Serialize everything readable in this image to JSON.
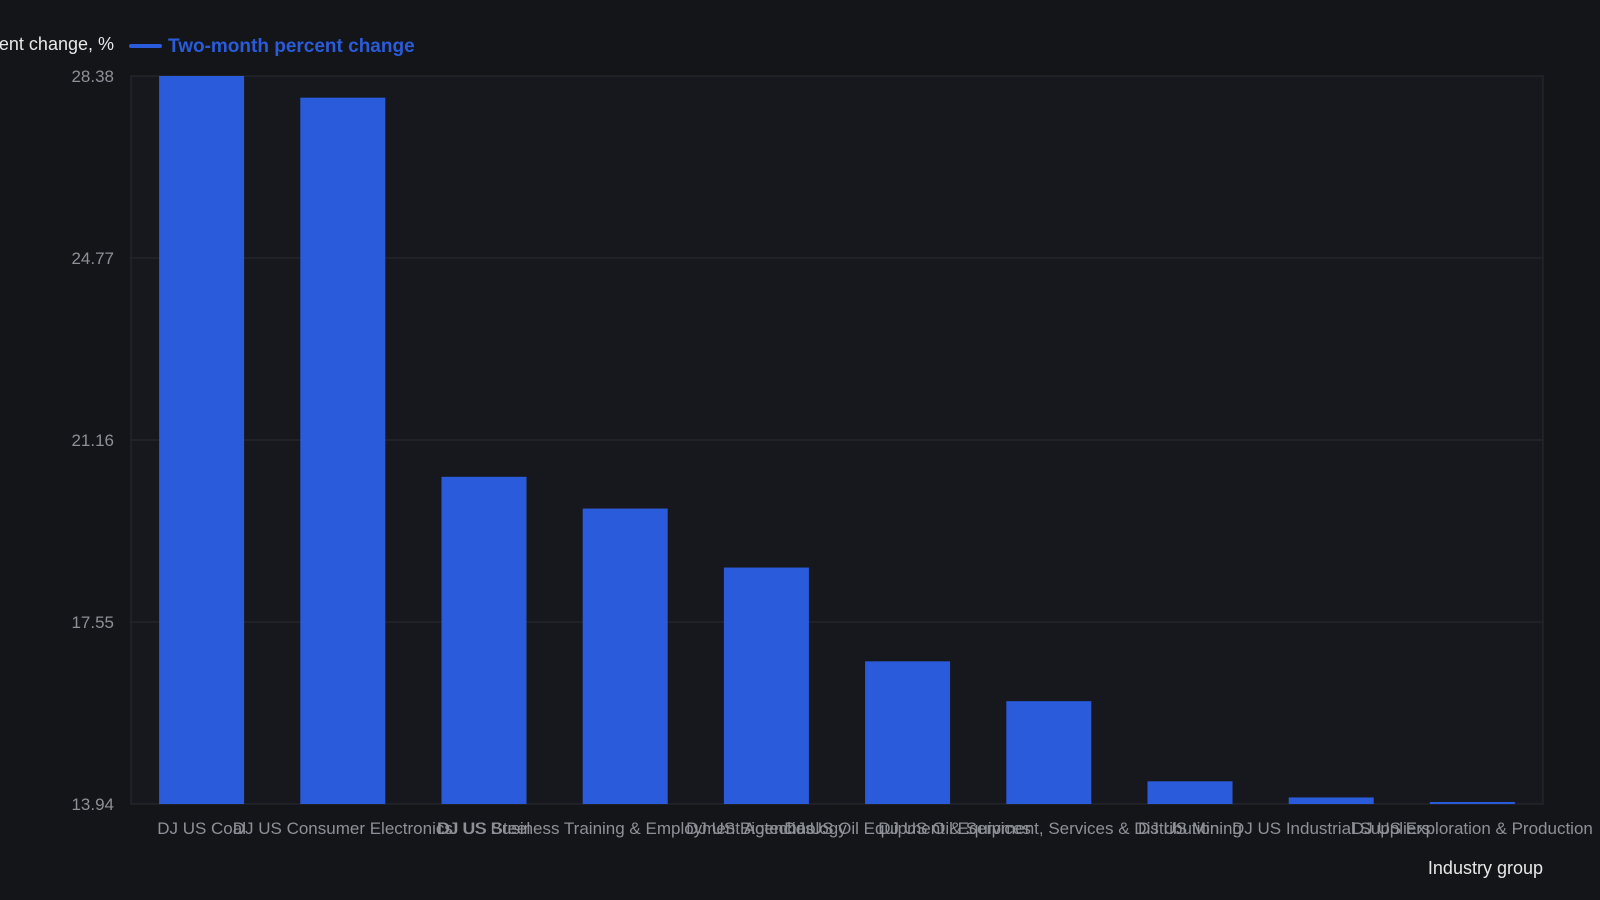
{
  "chart_data": {
    "type": "bar",
    "title": "",
    "ylabel": "ent change, %",
    "xlabel": "Industry group",
    "ylim": [
      13.94,
      28.38
    ],
    "yticks": [
      "28.38",
      "24.77",
      "21.16",
      "17.55",
      "13.94"
    ],
    "grid": true,
    "legend_position": "top-left",
    "categories": [
      "DJ US Coal",
      "DJ US Consumer Electronics",
      "DJ US Steel",
      "DJ US Business Training & Employment Agencies",
      "DJ US Biotechnology",
      "DJ US Oil Equipment & Services",
      "DJ US Oil Equipment, Services & Distribution",
      "DJ US Mining",
      "DJ US Industrial Suppliers",
      "DJ US Exploration & Production"
    ],
    "series": [
      {
        "name": "Two-month percent change",
        "color": "#2a5bdb",
        "values": [
          28.38,
          27.95,
          20.43,
          19.8,
          18.63,
          16.77,
          15.98,
          14.39,
          14.07,
          13.9
        ]
      }
    ],
    "colors": {
      "background": "#131519",
      "plot_background": "#16181d",
      "grid": "#2a2c31",
      "tick_text": "#8d9096",
      "legend_text": "#2a5bdb",
      "axis_title": "#e8e8e8"
    }
  }
}
